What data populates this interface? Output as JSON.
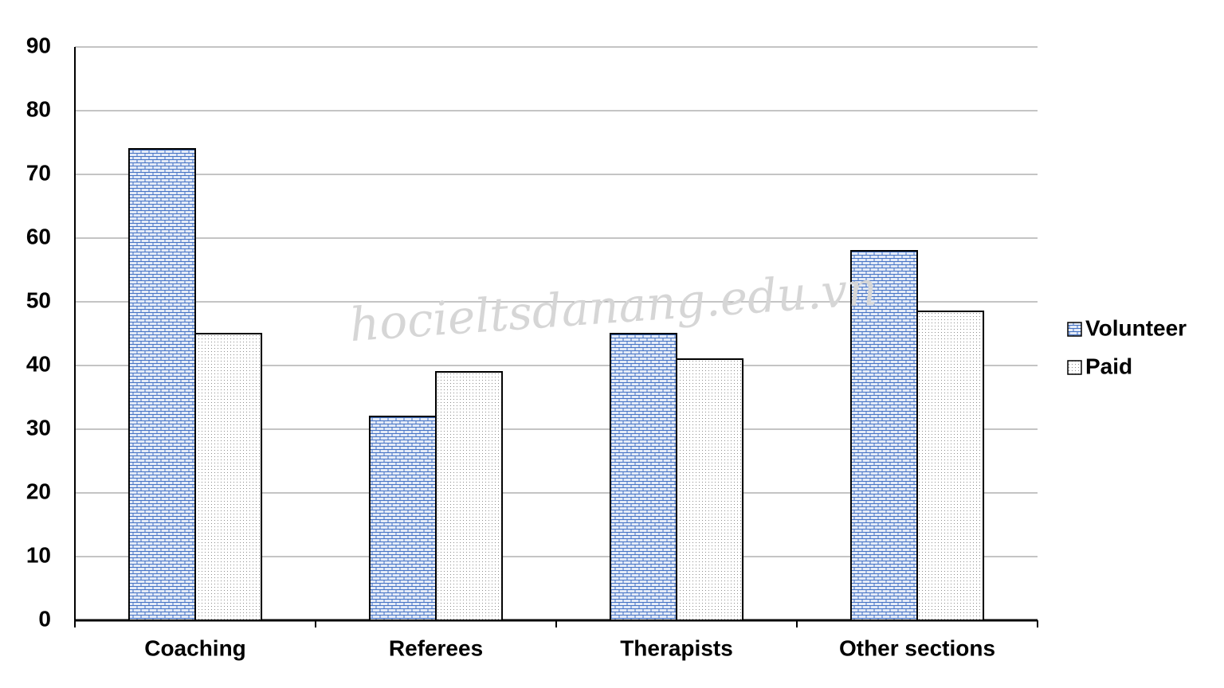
{
  "chart_data": {
    "type": "bar",
    "categories": [
      "Coaching",
      "Referees",
      "Therapists",
      "Other sections"
    ],
    "series": [
      {
        "name": "Volunteer",
        "color": "#4472c4",
        "values": [
          74,
          32,
          45,
          58
        ]
      },
      {
        "name": "Paid",
        "color": "#8c8c8c",
        "values": [
          45,
          39,
          41,
          48.5
        ]
      }
    ],
    "ylim": [
      0,
      90
    ],
    "yticks": [
      0,
      10,
      20,
      30,
      40,
      50,
      60,
      70,
      80,
      90
    ],
    "grid": true,
    "legend": "right",
    "watermark": "hocieltsdanang.edu.vn"
  }
}
